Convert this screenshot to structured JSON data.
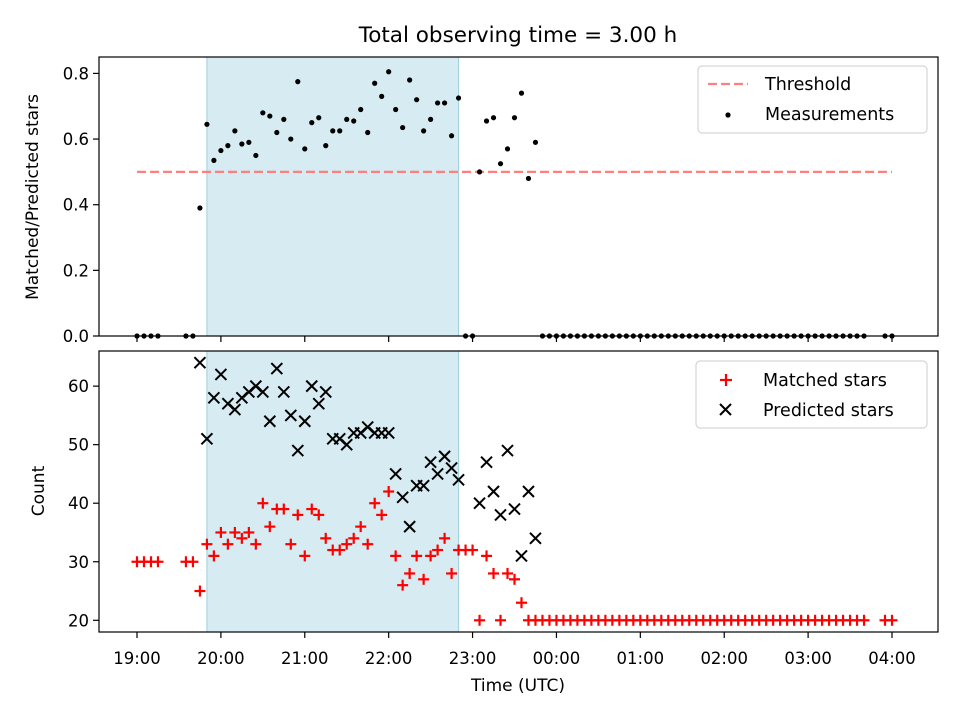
{
  "chart_data": [
    {
      "type": "scatter",
      "title": "Total observing time = 3.00 h",
      "ylabel": "Matched/Predicted stars",
      "ylim": [
        0,
        0.85
      ],
      "yticks": [
        "0.0",
        "0.2",
        "0.4",
        "0.6",
        "0.8"
      ],
      "shaded_span": [
        "19:50",
        "22:50"
      ],
      "threshold": {
        "name": "Threshold",
        "value": 0.5,
        "x_range": [
          "19:00",
          "04:00"
        ],
        "color": "#ff7f7f"
      },
      "legend": {
        "position": "top-right",
        "entries": [
          "Threshold",
          "Measurements"
        ]
      },
      "series": [
        {
          "name": "Measurements",
          "color": "#000000",
          "x": [
            "19:00",
            "19:05",
            "19:10",
            "19:15",
            "19:35",
            "19:40",
            "19:45",
            "19:50",
            "19:55",
            "20:00",
            "20:05",
            "20:10",
            "20:15",
            "20:20",
            "20:25",
            "20:30",
            "20:35",
            "20:40",
            "20:45",
            "20:50",
            "20:55",
            "21:00",
            "21:05",
            "21:10",
            "21:15",
            "21:20",
            "21:25",
            "21:30",
            "21:35",
            "21:40",
            "21:45",
            "21:50",
            "21:55",
            "22:00",
            "22:05",
            "22:10",
            "22:15",
            "22:20",
            "22:25",
            "22:30",
            "22:35",
            "22:40",
            "22:45",
            "22:50",
            "22:55",
            "23:00",
            "23:05",
            "23:10",
            "23:15",
            "23:20",
            "23:25",
            "23:30",
            "23:35",
            "23:40",
            "23:45",
            "23:50",
            "23:55",
            "00:00",
            "00:05",
            "00:10",
            "00:15",
            "00:20",
            "00:25",
            "00:30",
            "00:35",
            "00:40",
            "00:45",
            "00:50",
            "00:55",
            "01:00",
            "01:05",
            "01:10",
            "01:15",
            "01:20",
            "01:25",
            "01:30",
            "01:35",
            "01:40",
            "01:45",
            "01:50",
            "01:55",
            "02:00",
            "02:05",
            "02:10",
            "02:15",
            "02:20",
            "02:25",
            "02:30",
            "02:35",
            "02:40",
            "02:45",
            "02:50",
            "02:55",
            "03:00",
            "03:05",
            "03:10",
            "03:15",
            "03:20",
            "03:25",
            "03:30",
            "03:35",
            "03:40",
            "03:55",
            "04:00"
          ],
          "y": [
            0,
            0,
            0,
            0,
            0,
            0,
            0.39,
            0.645,
            0.535,
            0.565,
            0.58,
            0.625,
            0.585,
            0.59,
            0.55,
            0.68,
            0.67,
            0.62,
            0.66,
            0.6,
            0.775,
            0.57,
            0.65,
            0.665,
            0.58,
            0.625,
            0.625,
            0.66,
            0.655,
            0.69,
            0.62,
            0.77,
            0.73,
            0.805,
            0.69,
            0.635,
            0.78,
            0.72,
            0.625,
            0.66,
            0.71,
            0.71,
            0.61,
            0.725,
            0,
            0,
            0.5,
            0.655,
            0.665,
            0.525,
            0.57,
            0.665,
            0.74,
            0.48,
            0.59,
            0,
            0,
            0,
            0,
            0,
            0,
            0,
            0,
            0,
            0,
            0,
            0,
            0,
            0,
            0,
            0,
            0,
            0,
            0,
            0,
            0,
            0,
            0,
            0,
            0,
            0,
            0,
            0,
            0,
            0,
            0,
            0,
            0,
            0,
            0,
            0,
            0,
            0,
            0,
            0,
            0,
            0,
            0,
            0,
            0,
            0,
            0,
            0,
            0
          ]
        }
      ]
    },
    {
      "type": "scatter",
      "xlabel": "Time (UTC)",
      "ylabel": "Count",
      "ylim": [
        18,
        66
      ],
      "yticks": [
        "20",
        "30",
        "40",
        "50",
        "60"
      ],
      "xticks": [
        "19:00",
        "20:00",
        "21:00",
        "22:00",
        "23:00",
        "00:00",
        "01:00",
        "02:00",
        "03:00",
        "04:00"
      ],
      "shaded_span": [
        "19:50",
        "22:50"
      ],
      "legend": {
        "position": "top-right",
        "entries": [
          "Matched stars",
          "Predicted stars"
        ]
      },
      "series": [
        {
          "name": "Matched stars",
          "marker": "plus",
          "color": "#ff0000",
          "x": [
            "19:00",
            "19:05",
            "19:10",
            "19:15",
            "19:35",
            "19:40",
            "19:45",
            "19:50",
            "19:55",
            "20:00",
            "20:05",
            "20:10",
            "20:15",
            "20:20",
            "20:25",
            "20:30",
            "20:35",
            "20:40",
            "20:45",
            "20:50",
            "20:55",
            "21:00",
            "21:05",
            "21:10",
            "21:15",
            "21:20",
            "21:25",
            "21:30",
            "21:35",
            "21:40",
            "21:45",
            "21:50",
            "21:55",
            "22:00",
            "22:05",
            "22:10",
            "22:15",
            "22:20",
            "22:25",
            "22:30",
            "22:35",
            "22:40",
            "22:45",
            "22:50",
            "22:55",
            "23:00",
            "23:05",
            "23:10",
            "23:15",
            "23:20",
            "23:25",
            "23:30",
            "23:35",
            "23:40",
            "23:45",
            "23:50",
            "23:55",
            "00:00",
            "00:05",
            "00:10",
            "00:15",
            "00:20",
            "00:25",
            "00:30",
            "00:35",
            "00:40",
            "00:45",
            "00:50",
            "00:55",
            "01:00",
            "01:05",
            "01:10",
            "01:15",
            "01:20",
            "01:25",
            "01:30",
            "01:35",
            "01:40",
            "01:45",
            "01:50",
            "01:55",
            "02:00",
            "02:05",
            "02:10",
            "02:15",
            "02:20",
            "02:25",
            "02:30",
            "02:35",
            "02:40",
            "02:45",
            "02:50",
            "02:55",
            "03:00",
            "03:05",
            "03:10",
            "03:15",
            "03:20",
            "03:25",
            "03:30",
            "03:35",
            "03:40",
            "03:55",
            "04:00"
          ],
          "y": [
            30,
            30,
            30,
            30,
            30,
            30,
            25,
            33,
            31,
            35,
            33,
            35,
            34,
            35,
            33,
            40,
            36,
            39,
            39,
            33,
            38,
            31,
            39,
            38,
            34,
            32,
            32,
            33,
            34,
            36,
            33,
            40,
            38,
            42,
            31,
            26,
            28,
            31,
            27,
            31,
            32,
            34,
            28,
            32,
            32,
            32,
            20,
            31,
            28,
            20,
            28,
            27,
            23,
            20,
            20,
            20,
            20,
            20,
            20,
            20,
            20,
            20,
            20,
            20,
            20,
            20,
            20,
            20,
            20,
            20,
            20,
            20,
            20,
            20,
            20,
            20,
            20,
            20,
            20,
            20,
            20,
            20,
            20,
            20,
            20,
            20,
            20,
            20,
            20,
            20,
            20,
            20,
            20,
            20,
            20,
            20,
            20,
            20,
            20,
            20,
            20,
            20,
            20,
            20
          ]
        },
        {
          "name": "Predicted stars",
          "marker": "x",
          "color": "#000000",
          "x": [
            "19:45",
            "19:50",
            "19:55",
            "20:00",
            "20:05",
            "20:10",
            "20:15",
            "20:20",
            "20:25",
            "20:30",
            "20:35",
            "20:40",
            "20:45",
            "20:50",
            "20:55",
            "21:00",
            "21:05",
            "21:10",
            "21:15",
            "21:20",
            "21:25",
            "21:30",
            "21:35",
            "21:40",
            "21:45",
            "21:50",
            "21:55",
            "22:00",
            "22:05",
            "22:10",
            "22:15",
            "22:20",
            "22:25",
            "22:30",
            "22:35",
            "22:40",
            "22:45",
            "22:50",
            "23:05",
            "23:10",
            "23:15",
            "23:20",
            "23:25",
            "23:30",
            "23:35",
            "23:40",
            "23:45"
          ],
          "y": [
            64,
            51,
            58,
            62,
            57,
            56,
            58,
            59,
            60,
            59,
            54,
            63,
            59,
            55,
            49,
            54,
            60,
            57,
            59,
            51,
            51,
            50,
            52,
            52,
            53,
            52,
            52,
            52,
            45,
            41,
            36,
            43,
            43,
            47,
            45,
            48,
            46,
            44,
            40,
            47,
            42,
            38,
            49,
            39,
            31,
            42,
            34
          ]
        }
      ]
    }
  ]
}
